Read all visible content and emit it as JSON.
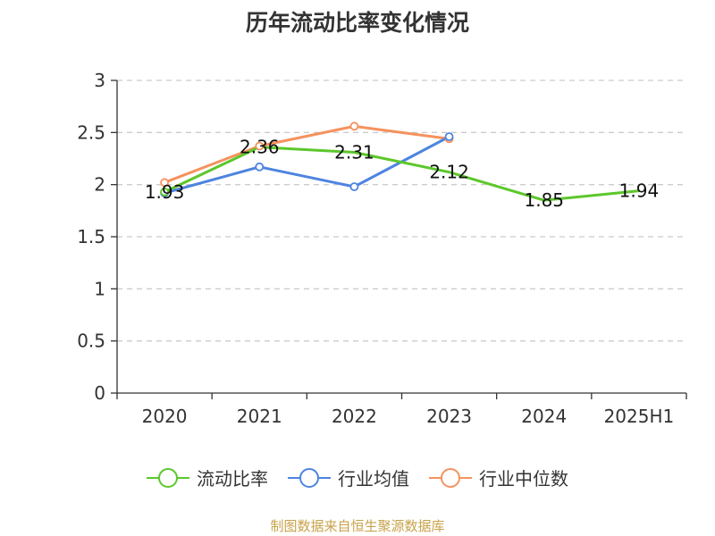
{
  "title": "历年流动比率变化情况",
  "source": "制图数据来自恒生聚源数据库",
  "chart_data": {
    "type": "line",
    "title": "历年流动比率变化情况",
    "categories": [
      "2020",
      "2021",
      "2022",
      "2023",
      "2024",
      "2025H1"
    ],
    "ylim": [
      0,
      3
    ],
    "yticks": [
      "0",
      "0.5",
      "1",
      "1.5",
      "2",
      "2.5",
      "3"
    ],
    "grid": true,
    "legend_position": "bottom",
    "series": [
      {
        "name": "流动比率",
        "color": "#5cc72b",
        "values": [
          1.93,
          2.36,
          2.31,
          2.12,
          1.85,
          1.94
        ],
        "labels": [
          "1.93",
          "2.36",
          "2.31",
          "2.12",
          "1.85",
          "1.94"
        ],
        "markers": [
          true,
          false,
          false,
          false,
          false,
          false
        ]
      },
      {
        "name": "行业均值",
        "color": "#4e84e0",
        "values": [
          1.92,
          2.17,
          1.98,
          2.46,
          null,
          null
        ],
        "labels": [],
        "markers": [
          true,
          true,
          true,
          true,
          false,
          false
        ]
      },
      {
        "name": "行业中位数",
        "color": "#f5925e",
        "values": [
          2.02,
          2.37,
          2.56,
          2.44,
          null,
          null
        ],
        "labels": [],
        "markers": [
          true,
          true,
          true,
          true,
          false,
          false
        ]
      }
    ]
  }
}
